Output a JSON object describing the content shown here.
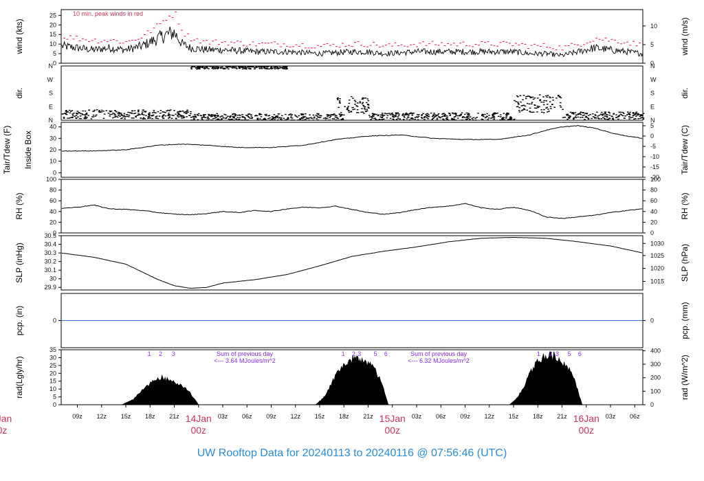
{
  "title": "UW Rooftop Data for 20240113  to  20240116 @ 07:56:46  (UTC)",
  "colors": {
    "trace": "#000000",
    "peak": "#e0204a",
    "zero_line": "#3a6fc4",
    "annotation": "#8a2be2",
    "day_label": "#cc3355",
    "title": "#2b8cd6"
  },
  "time_axis": {
    "unit": "hours since start of plotted window (07z on 13 Jan 2024)",
    "range": [
      0,
      72
    ],
    "ticks": [
      {
        "t": 2,
        "label": "09z"
      },
      {
        "t": 5,
        "label": "12z"
      },
      {
        "t": 8,
        "label": "15z"
      },
      {
        "t": 11,
        "label": "18z"
      },
      {
        "t": 14,
        "label": "21z"
      },
      {
        "t": 17,
        "label": "14Jan"
      },
      {
        "t": 20,
        "label": "03z"
      },
      {
        "t": 23,
        "label": "06z"
      },
      {
        "t": 26,
        "label": "09z"
      },
      {
        "t": 29,
        "label": "12z"
      },
      {
        "t": 32,
        "label": "15z"
      },
      {
        "t": 35,
        "label": "18z"
      },
      {
        "t": 38,
        "label": "21z"
      },
      {
        "t": 41,
        "label": "15Jan"
      },
      {
        "t": 44,
        "label": "03z"
      },
      {
        "t": 47,
        "label": "06z"
      },
      {
        "t": 50,
        "label": "09z"
      },
      {
        "t": 53,
        "label": "12z"
      },
      {
        "t": 56,
        "label": "15z"
      },
      {
        "t": 59,
        "label": "18z"
      },
      {
        "t": 62,
        "label": "21z"
      },
      {
        "t": 65,
        "label": "16Jan"
      },
      {
        "t": 68,
        "label": "03z"
      },
      {
        "t": 71,
        "label": "06z"
      }
    ],
    "day_labels": [
      {
        "t": 17,
        "date": "14Jan",
        "time": "00z"
      },
      {
        "t": 41,
        "date": "15Jan",
        "time": "00z"
      },
      {
        "t": 65,
        "date": "16Jan",
        "time": "00z"
      }
    ],
    "left_clipped_day": {
      "date": "Jan",
      "time": "0z"
    }
  },
  "chart_data": [
    {
      "type": "line",
      "id": "wind",
      "ylabel_left": "wind (kts)",
      "ylabel_right": "wind (m/s)",
      "ylim": [
        0,
        28
      ],
      "ticks_left": [
        0,
        5,
        10,
        15,
        20,
        25
      ],
      "ticks_right": [
        {
          "value": 0,
          "at": 0
        },
        {
          "value": 5,
          "at": 9.72
        },
        {
          "value": 10,
          "at": 19.44
        }
      ],
      "annotation": "10 min. peak winds in red",
      "series": [
        {
          "name": "wind",
          "x": [
            0,
            2,
            4,
            6,
            8,
            10,
            11,
            12,
            13,
            14,
            15,
            16,
            18,
            20,
            24,
            28,
            32,
            36,
            38,
            40,
            44,
            48,
            52,
            56,
            58,
            60,
            62,
            64,
            66,
            68,
            70,
            72
          ],
          "y": [
            9,
            8,
            7,
            8,
            7,
            9,
            11,
            13,
            15,
            16,
            10,
            8,
            7,
            7,
            6,
            6,
            5,
            6,
            6,
            5,
            6,
            6,
            6,
            6,
            5,
            5,
            4,
            6,
            8,
            7,
            6,
            5
          ]
        },
        {
          "name": "10 min. peak",
          "x": [
            0,
            2,
            4,
            6,
            8,
            10,
            11,
            12,
            13,
            14,
            15,
            16,
            18,
            20,
            24,
            28,
            32,
            36,
            38,
            40,
            44,
            48,
            52,
            56,
            58,
            60,
            62,
            64,
            66,
            68,
            70,
            72
          ],
          "y": [
            14,
            13,
            12,
            12,
            11,
            14,
            17,
            20,
            24,
            26,
            16,
            13,
            11,
            11,
            10,
            10,
            9,
            10,
            10,
            9,
            10,
            10,
            10,
            10,
            9,
            9,
            8,
            10,
            13,
            12,
            11,
            9
          ]
        }
      ]
    },
    {
      "type": "scatter",
      "id": "dir",
      "ylabel_left": "dir.",
      "ylabel_right": "dir.",
      "ylim": [
        0,
        360
      ],
      "tick_labels": [
        {
          "value": 0,
          "label": "N"
        },
        {
          "value": 90,
          "label": "E"
        },
        {
          "value": 180,
          "label": "S"
        },
        {
          "value": 270,
          "label": "W"
        },
        {
          "value": 360,
          "label": "N"
        }
      ],
      "segments": [
        {
          "t": [
            0,
            16
          ],
          "center": 40,
          "spread": 30
        },
        {
          "t": [
            16,
            35
          ],
          "center": 20,
          "spread": 25
        },
        {
          "t": [
            16,
            28
          ],
          "center": 350,
          "spread": 10
        },
        {
          "t": [
            34,
            38
          ],
          "center": 100,
          "spread": 60
        },
        {
          "t": [
            38,
            56
          ],
          "center": 25,
          "spread": 25
        },
        {
          "t": [
            56,
            62
          ],
          "center": 110,
          "spread": 60
        },
        {
          "t": [
            62,
            72
          ],
          "center": 30,
          "spread": 25
        }
      ]
    },
    {
      "type": "line",
      "id": "temp",
      "ylabel_left": "Tair/Tdew (F)",
      "ylabel_left2": "Inside Box",
      "ylabel_right": "Tair/Tdew (C)",
      "ylim": [
        -4,
        44
      ],
      "ticks_left": [
        0,
        10,
        20,
        30,
        40
      ],
      "ticks_right": [
        {
          "value": 5,
          "at": 41
        },
        {
          "value": 0,
          "at": 32
        },
        {
          "value": -5,
          "at": 23
        },
        {
          "value": -10,
          "at": 14
        },
        {
          "value": -15,
          "at": 5
        },
        {
          "value": -20,
          "at": -4
        }
      ],
      "x": [
        0,
        4,
        8,
        12,
        15,
        18,
        22,
        26,
        30,
        34,
        38,
        42,
        46,
        50,
        54,
        58,
        60,
        62,
        64,
        66,
        68,
        70,
        72
      ],
      "y": [
        19,
        19,
        20,
        24,
        25,
        24,
        22,
        22,
        24,
        29,
        32,
        33,
        30,
        29,
        29,
        33,
        37,
        40,
        41,
        39,
        35,
        32,
        30
      ]
    },
    {
      "type": "line",
      "id": "rh",
      "ylabel_left": "RH (%)",
      "ylabel_right": "RH (%)",
      "ylim": [
        0,
        100
      ],
      "ticks_left": [
        0,
        20,
        40,
        60,
        80,
        100
      ],
      "ticks_right": [
        0,
        20,
        40,
        60,
        80,
        100
      ],
      "x": [
        0,
        2,
        4,
        6,
        8,
        10,
        12,
        14,
        16,
        18,
        20,
        22,
        24,
        26,
        28,
        30,
        32,
        34,
        36,
        38,
        40,
        42,
        44,
        46,
        48,
        50,
        52,
        54,
        56,
        58,
        60,
        62,
        64,
        66,
        68,
        70,
        72
      ],
      "y": [
        46,
        48,
        52,
        45,
        44,
        42,
        38,
        35,
        34,
        36,
        40,
        38,
        42,
        40,
        45,
        48,
        47,
        50,
        44,
        38,
        35,
        38,
        44,
        48,
        50,
        55,
        47,
        44,
        48,
        42,
        30,
        27,
        30,
        33,
        38,
        42,
        45
      ]
    },
    {
      "type": "line",
      "id": "slp",
      "ylabel_left": "SLP (inHg)",
      "ylabel_right": "SLP (hPa)",
      "ylim": [
        29.87,
        30.5
      ],
      "ticks_left": [
        29.9,
        30.0,
        30.1,
        30.2,
        30.3,
        30.4,
        30.5
      ],
      "ticks_right": [
        {
          "value": 1015,
          "at": 29.97
        },
        {
          "value": 1020,
          "at": 30.12
        },
        {
          "value": 1025,
          "at": 30.27
        },
        {
          "value": 1030,
          "at": 30.41
        }
      ],
      "x": [
        0,
        4,
        8,
        10,
        12,
        14,
        16,
        18,
        20,
        24,
        28,
        32,
        36,
        40,
        44,
        48,
        52,
        56,
        60,
        64,
        68,
        72
      ],
      "y": [
        30.3,
        30.25,
        30.17,
        30.08,
        29.99,
        29.92,
        29.89,
        29.9,
        29.95,
        29.99,
        30.05,
        30.15,
        30.26,
        30.32,
        30.37,
        30.43,
        30.47,
        30.48,
        30.47,
        30.43,
        30.38,
        30.3
      ]
    },
    {
      "type": "line",
      "id": "pcp",
      "ylabel_left": "pcp. (in)",
      "ylabel_right": "pcp. (mm)",
      "ylim": [
        -1,
        1
      ],
      "ticks_left": [
        0
      ],
      "ticks_right": [
        0
      ],
      "x": [
        0,
        72
      ],
      "y": [
        0,
        0
      ]
    },
    {
      "type": "area",
      "id": "rad",
      "ylabel_left": "rad(Lgly/hr)",
      "ylabel_right": "rad (W/m^2)",
      "ylim": [
        0,
        35
      ],
      "ticks_left": [
        0,
        5,
        10,
        15,
        20,
        25,
        30,
        35
      ],
      "ticks_right": [
        {
          "value": 0,
          "at": 0
        },
        {
          "value": 100,
          "at": 8.6
        },
        {
          "value": 200,
          "at": 17.2
        },
        {
          "value": 300,
          "at": 25.8
        },
        {
          "value": 400,
          "at": 34.4
        }
      ],
      "days": [
        {
          "x": [
            7.5,
            9,
            10,
            11,
            12,
            12.5,
            13,
            14,
            15,
            16,
            17
          ],
          "y": [
            0,
            4,
            10,
            15,
            18,
            19,
            18,
            16,
            13,
            8,
            0
          ]
        },
        {
          "x": [
            31.5,
            32.5,
            33.5,
            34.5,
            35.5,
            36.5,
            37.5,
            38,
            38.5,
            39.5,
            40.5
          ],
          "y": [
            0,
            5,
            15,
            25,
            30,
            33,
            31,
            28,
            27,
            18,
            0
          ]
        },
        {
          "x": [
            55.5,
            56.5,
            57.5,
            58.5,
            59.5,
            60.5,
            61.5,
            62,
            62.5,
            63.5,
            64.5
          ],
          "y": [
            0,
            5,
            15,
            27,
            32,
            35,
            33,
            30,
            28,
            18,
            0
          ]
        }
      ],
      "hour_markers": [
        {
          "t": 10.9,
          "label": "1"
        },
        {
          "t": 12.3,
          "label": "2"
        },
        {
          "t": 13.9,
          "label": "3"
        },
        {
          "t": 34.9,
          "label": "1"
        },
        {
          "t": 36.2,
          "label": "2"
        },
        {
          "t": 36.9,
          "label": "3"
        },
        {
          "t": 38.9,
          "label": "5"
        },
        {
          "t": 40.2,
          "label": "6"
        },
        {
          "t": 59.1,
          "label": "1"
        },
        {
          "t": 60.6,
          "label": "2"
        },
        {
          "t": 61.4,
          "label": "3"
        },
        {
          "t": 62.9,
          "label": "5"
        },
        {
          "t": 64.2,
          "label": "6"
        }
      ],
      "sums": [
        {
          "t": 24,
          "line1": "Sum of previous day",
          "line2": "<--- 3.64 MJoules/m^2"
        },
        {
          "t": 48,
          "line1": "Sum of previous day",
          "line2": "<--- 6.32 MJoules/m^2"
        }
      ]
    }
  ]
}
